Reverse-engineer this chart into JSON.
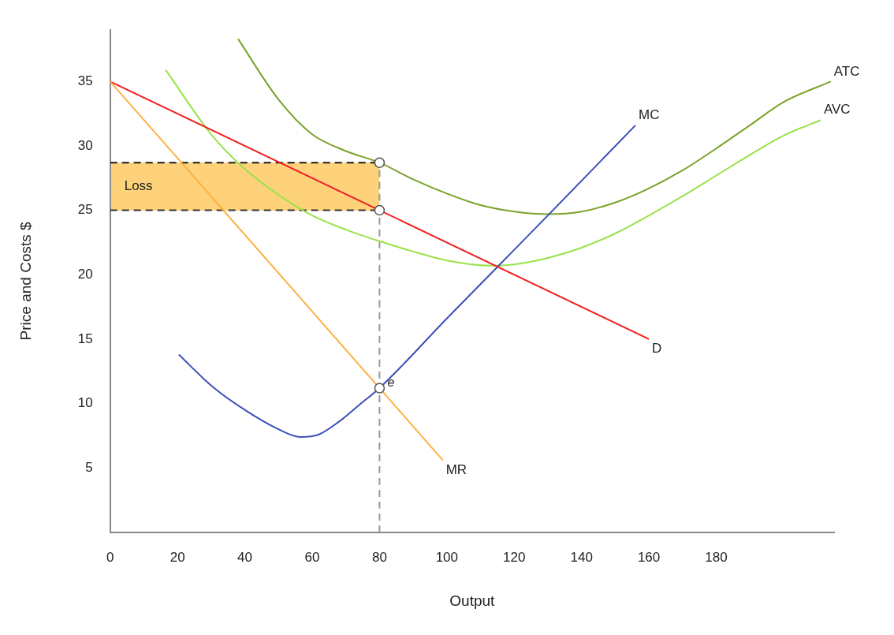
{
  "chart_data": {
    "type": "line",
    "xlabel": "Output",
    "ylabel": "Price and Costs $",
    "xlim": [
      0,
      215
    ],
    "ylim": [
      0,
      39
    ],
    "xticks": [
      0,
      20,
      40,
      60,
      80,
      100,
      120,
      140,
      160,
      180
    ],
    "yticks": [
      5,
      10,
      15,
      20,
      25,
      30,
      35
    ],
    "grid": false,
    "legend": false,
    "series": [
      {
        "type": "line",
        "color": "#1a1a1a",
        "line_style": "dashed",
        "x": [
          0,
          80
        ],
        "values": [
          28.7,
          28.7
        ]
      },
      {
        "type": "line",
        "color": "#333333",
        "line_style": "dashed",
        "x": [
          0,
          80
        ],
        "values": [
          25,
          25
        ]
      },
      {
        "color": "#999999",
        "line_style": "dashed",
        "x": [
          80,
          80
        ],
        "values": [
          0,
          28.7
        ]
      },
      {
        "name": "ATC",
        "color": "#7aa32a",
        "x": [
          38,
          50,
          60,
          70,
          80,
          90,
          100,
          110,
          120,
          130,
          140,
          150,
          160,
          170,
          180,
          190,
          200,
          214
        ],
        "values": [
          38.3,
          33.6,
          30.9,
          29.6,
          28.7,
          27.4,
          26.3,
          25.4,
          24.9,
          24.7,
          24.9,
          25.6,
          26.7,
          28.1,
          29.8,
          31.6,
          33.4,
          35
        ]
      },
      {
        "name": "AVC",
        "color": "#99e24a",
        "x": [
          16.5,
          30,
          40,
          50,
          60,
          70,
          80,
          90,
          100,
          113,
          120,
          130,
          140,
          150,
          160,
          170,
          180,
          190,
          200,
          211
        ],
        "values": [
          35.9,
          30.9,
          28.2,
          26.2,
          24.6,
          23.5,
          22.6,
          21.8,
          21.1,
          20.7,
          20.8,
          21.3,
          22.1,
          23.2,
          24.6,
          26.1,
          27.7,
          29.3,
          30.8,
          32
        ]
      },
      {
        "name": "MC",
        "color": "#3c4fb8",
        "x": [
          20.4,
          30,
          40,
          50,
          56.5,
          62,
          68,
          74,
          80,
          100,
          115,
          130,
          156
        ],
        "values": [
          13.8,
          11.4,
          9.5,
          8,
          7.4,
          7.6,
          8.6,
          9.9,
          11.2,
          16.6,
          20.6,
          24.6,
          31.6
        ]
      },
      {
        "name": "D",
        "color": "#f02020",
        "x": [
          0,
          160
        ],
        "values": [
          35,
          15
        ]
      },
      {
        "name": "MR",
        "color": "#fbb040",
        "x": [
          0,
          98.8
        ],
        "values": [
          35,
          5.6
        ]
      },
      {
        "type": "scatter",
        "color": "#ffffff",
        "marker": "circle",
        "x": [
          80,
          80,
          80
        ],
        "values": [
          28.7,
          25,
          11.2
        ]
      }
    ],
    "annotations": [
      "Loss",
      {
        "text": "e",
        "x": 80,
        "y": 11.2
      }
    ]
  }
}
